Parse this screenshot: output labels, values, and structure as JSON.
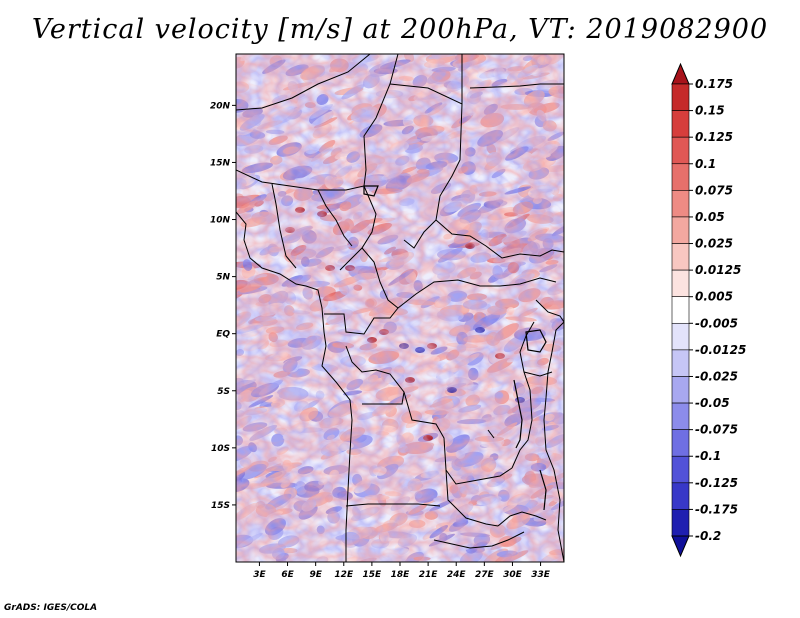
{
  "title": "Vertical velocity [m/s] at 200hPa, VT: 2019082900",
  "credit": "GrADS: IGES/COLA",
  "map": {
    "lat_labels": [
      "20N",
      "15N",
      "10N",
      "5N",
      "EQ",
      "5S",
      "10S",
      "15S"
    ],
    "lat_values": [
      20,
      15,
      10,
      5,
      0,
      -5,
      -10,
      -15
    ],
    "lon_labels": [
      "3E",
      "6E",
      "9E",
      "12E",
      "15E",
      "18E",
      "21E",
      "24E",
      "27E",
      "30E",
      "33E"
    ],
    "lon_values": [
      3,
      6,
      9,
      12,
      15,
      18,
      21,
      24,
      27,
      30,
      33
    ],
    "lat_range": [
      -20,
      24.5
    ],
    "lon_range": [
      0.5,
      35.5
    ]
  },
  "colorbar": {
    "labels": [
      "0.175",
      "0.15",
      "0.125",
      "0.1",
      "0.075",
      "0.05",
      "0.025",
      "0.0125",
      "0.005",
      "-0.005",
      "-0.0125",
      "-0.025",
      "-0.05",
      "-0.075",
      "-0.1",
      "-0.125",
      "-0.175",
      "-0.2"
    ],
    "colors": [
      "#a8131b",
      "#c52a2a",
      "#d63e3c",
      "#e05855",
      "#e7706b",
      "#ee8b84",
      "#f3a8a0",
      "#f8c7c1",
      "#fce3e0",
      "#ffffff",
      "#e3e3fb",
      "#c6c6f6",
      "#a8a8f0",
      "#8c8ceb",
      "#6f6fe3",
      "#5252d8",
      "#3838c8",
      "#1f1fb0",
      "#10109a"
    ],
    "top_color": "#a8131b",
    "bottom_color": "#10109a"
  }
}
